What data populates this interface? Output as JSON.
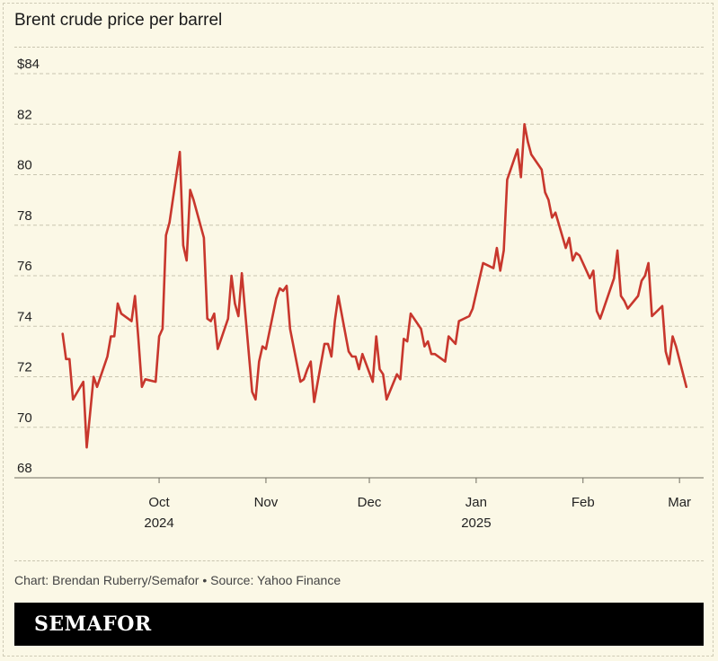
{
  "header": {
    "title": "Brent crude price per barrel"
  },
  "credit": "Chart: Brendan Ruberry/Semafor • Source: Yahoo Finance",
  "brand": "SEMAFOR",
  "colors": {
    "line": "#c8372d",
    "background": "#fbf8e6",
    "grid": "#c9c5b0",
    "brand_bar": "#000000"
  },
  "chart_data": {
    "type": "line",
    "title": "Brent crude price per barrel",
    "xlabel": "",
    "ylabel": "",
    "ylim": [
      68,
      84
    ],
    "grid": true,
    "y_ticks": [
      {
        "value": 84,
        "label": "$84"
      },
      {
        "value": 82,
        "label": "82"
      },
      {
        "value": 80,
        "label": "80"
      },
      {
        "value": 78,
        "label": "78"
      },
      {
        "value": 76,
        "label": "76"
      },
      {
        "value": 74,
        "label": "74"
      },
      {
        "value": 72,
        "label": "72"
      },
      {
        "value": 70,
        "label": "70"
      },
      {
        "value": 68,
        "label": "68"
      }
    ],
    "x_ticks": [
      {
        "date": "2024-10-01",
        "label": "Oct",
        "sublabel": "2024"
      },
      {
        "date": "2024-11-01",
        "label": "Nov",
        "sublabel": ""
      },
      {
        "date": "2024-12-01",
        "label": "Dec",
        "sublabel": ""
      },
      {
        "date": "2025-01-01",
        "label": "Jan",
        "sublabel": "2025"
      },
      {
        "date": "2025-02-01",
        "label": "Feb",
        "sublabel": ""
      },
      {
        "date": "2025-03-01",
        "label": "Mar",
        "sublabel": ""
      }
    ],
    "series": [
      {
        "points": [
          [
            "2024-09-03",
            73.7
          ],
          [
            "2024-09-04",
            72.7
          ],
          [
            "2024-09-05",
            72.7
          ],
          [
            "2024-09-06",
            71.1
          ],
          [
            "2024-09-09",
            71.8
          ],
          [
            "2024-09-10",
            69.2
          ],
          [
            "2024-09-11",
            70.6
          ],
          [
            "2024-09-12",
            72.0
          ],
          [
            "2024-09-13",
            71.6
          ],
          [
            "2024-09-16",
            72.8
          ],
          [
            "2024-09-17",
            73.6
          ],
          [
            "2024-09-18",
            73.6
          ],
          [
            "2024-09-19",
            74.9
          ],
          [
            "2024-09-20",
            74.5
          ],
          [
            "2024-09-23",
            74.2
          ],
          [
            "2024-09-24",
            75.2
          ],
          [
            "2024-09-25",
            73.5
          ],
          [
            "2024-09-26",
            71.6
          ],
          [
            "2024-09-27",
            71.9
          ],
          [
            "2024-09-30",
            71.8
          ],
          [
            "2024-10-01",
            73.6
          ],
          [
            "2024-10-02",
            73.9
          ],
          [
            "2024-10-03",
            77.6
          ],
          [
            "2024-10-04",
            78.1
          ],
          [
            "2024-10-07",
            80.9
          ],
          [
            "2024-10-08",
            77.2
          ],
          [
            "2024-10-09",
            76.6
          ],
          [
            "2024-10-10",
            79.4
          ],
          [
            "2024-10-11",
            79.0
          ],
          [
            "2024-10-14",
            77.5
          ],
          [
            "2024-10-15",
            74.3
          ],
          [
            "2024-10-16",
            74.2
          ],
          [
            "2024-10-17",
            74.5
          ],
          [
            "2024-10-18",
            73.1
          ],
          [
            "2024-10-21",
            74.3
          ],
          [
            "2024-10-22",
            76.0
          ],
          [
            "2024-10-23",
            74.9
          ],
          [
            "2024-10-24",
            74.4
          ],
          [
            "2024-10-25",
            76.1
          ],
          [
            "2024-10-28",
            71.4
          ],
          [
            "2024-10-29",
            71.1
          ],
          [
            "2024-10-30",
            72.6
          ],
          [
            "2024-10-31",
            73.2
          ],
          [
            "2024-11-01",
            73.1
          ],
          [
            "2024-11-04",
            75.1
          ],
          [
            "2024-11-05",
            75.5
          ],
          [
            "2024-11-06",
            75.4
          ],
          [
            "2024-11-07",
            75.6
          ],
          [
            "2024-11-08",
            73.9
          ],
          [
            "2024-11-11",
            71.8
          ],
          [
            "2024-11-12",
            71.9
          ],
          [
            "2024-11-13",
            72.3
          ],
          [
            "2024-11-14",
            72.6
          ],
          [
            "2024-11-15",
            71.0
          ],
          [
            "2024-11-18",
            73.3
          ],
          [
            "2024-11-19",
            73.3
          ],
          [
            "2024-11-20",
            72.8
          ],
          [
            "2024-11-21",
            74.2
          ],
          [
            "2024-11-22",
            75.2
          ],
          [
            "2024-11-25",
            73.0
          ],
          [
            "2024-11-26",
            72.8
          ],
          [
            "2024-11-27",
            72.8
          ],
          [
            "2024-11-28",
            72.3
          ],
          [
            "2024-11-29",
            72.9
          ],
          [
            "2024-12-02",
            71.8
          ],
          [
            "2024-12-03",
            73.6
          ],
          [
            "2024-12-04",
            72.3
          ],
          [
            "2024-12-05",
            72.1
          ],
          [
            "2024-12-06",
            71.1
          ],
          [
            "2024-12-09",
            72.1
          ],
          [
            "2024-12-10",
            71.9
          ],
          [
            "2024-12-11",
            73.5
          ],
          [
            "2024-12-12",
            73.4
          ],
          [
            "2024-12-13",
            74.5
          ],
          [
            "2024-12-16",
            73.9
          ],
          [
            "2024-12-17",
            73.2
          ],
          [
            "2024-12-18",
            73.4
          ],
          [
            "2024-12-19",
            72.9
          ],
          [
            "2024-12-20",
            72.9
          ],
          [
            "2024-12-23",
            72.6
          ],
          [
            "2024-12-24",
            73.6
          ],
          [
            "2024-12-26",
            73.3
          ],
          [
            "2024-12-27",
            74.2
          ],
          [
            "2024-12-30",
            74.4
          ],
          [
            "2024-12-31",
            74.7
          ],
          [
            "2025-01-02",
            75.9
          ],
          [
            "2025-01-03",
            76.5
          ],
          [
            "2025-01-06",
            76.3
          ],
          [
            "2025-01-07",
            77.1
          ],
          [
            "2025-01-08",
            76.2
          ],
          [
            "2025-01-09",
            77.0
          ],
          [
            "2025-01-10",
            79.8
          ],
          [
            "2025-01-13",
            81.0
          ],
          [
            "2025-01-14",
            79.9
          ],
          [
            "2025-01-15",
            82.0
          ],
          [
            "2025-01-16",
            81.3
          ],
          [
            "2025-01-17",
            80.8
          ],
          [
            "2025-01-20",
            80.2
          ],
          [
            "2025-01-21",
            79.3
          ],
          [
            "2025-01-22",
            79.0
          ],
          [
            "2025-01-23",
            78.3
          ],
          [
            "2025-01-24",
            78.5
          ],
          [
            "2025-01-27",
            77.1
          ],
          [
            "2025-01-28",
            77.5
          ],
          [
            "2025-01-29",
            76.6
          ],
          [
            "2025-01-30",
            76.9
          ],
          [
            "2025-01-31",
            76.8
          ],
          [
            "2025-02-03",
            75.9
          ],
          [
            "2025-02-04",
            76.2
          ],
          [
            "2025-02-05",
            74.6
          ],
          [
            "2025-02-06",
            74.3
          ],
          [
            "2025-02-07",
            74.7
          ],
          [
            "2025-02-10",
            75.9
          ],
          [
            "2025-02-11",
            77.0
          ],
          [
            "2025-02-12",
            75.2
          ],
          [
            "2025-02-13",
            75.0
          ],
          [
            "2025-02-14",
            74.7
          ],
          [
            "2025-02-17",
            75.2
          ],
          [
            "2025-02-18",
            75.8
          ],
          [
            "2025-02-19",
            76.0
          ],
          [
            "2025-02-20",
            76.5
          ],
          [
            "2025-02-21",
            74.4
          ],
          [
            "2025-02-24",
            74.8
          ],
          [
            "2025-02-25",
            73.0
          ],
          [
            "2025-02-26",
            72.5
          ],
          [
            "2025-02-27",
            73.6
          ],
          [
            "2025-02-28",
            73.2
          ],
          [
            "2025-03-03",
            71.6
          ]
        ]
      }
    ]
  }
}
